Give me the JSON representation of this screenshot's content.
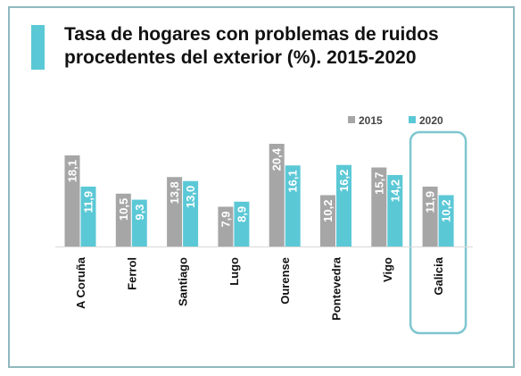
{
  "title_lines": [
    "Tasa de hogares con problemas de ruidos",
    "procedentes del exterior (%). 2015-2020"
  ],
  "colors": {
    "accent": "#5bc8d6",
    "frame": "#8fb9bf",
    "series_2015": "#a6a6a6",
    "series_2020": "#5bc8d6",
    "highlight_box": "#7ec6cf"
  },
  "chart_data": {
    "type": "bar",
    "title": "Tasa de hogares con problemas de ruidos procedentes del exterior (%). 2015-2020",
    "categories": [
      "A Coruña",
      "Ferrol",
      "Santiago",
      "Lugo",
      "Ourense",
      "Pontevedra",
      "Vigo",
      "Galicia"
    ],
    "series": [
      {
        "name": "2015",
        "values": [
          18.1,
          10.5,
          13.8,
          7.9,
          20.4,
          10.2,
          15.7,
          11.9
        ],
        "labels": [
          "18,1",
          "10,5",
          "13,8",
          "7,9",
          "20,4",
          "10,2",
          "15,7",
          "11,9"
        ]
      },
      {
        "name": "2020",
        "values": [
          11.9,
          9.3,
          13.0,
          8.9,
          16.1,
          16.2,
          14.2,
          10.2
        ],
        "labels": [
          "11,9",
          "9,3",
          "13,0",
          "8,9",
          "16,1",
          "16,2",
          "14,2",
          "10,2"
        ]
      }
    ],
    "ylim": [
      0,
      22
    ],
    "legend": "top-right",
    "grid": false,
    "highlighted_category": "Galicia",
    "data_labels": "inside-rotated"
  }
}
